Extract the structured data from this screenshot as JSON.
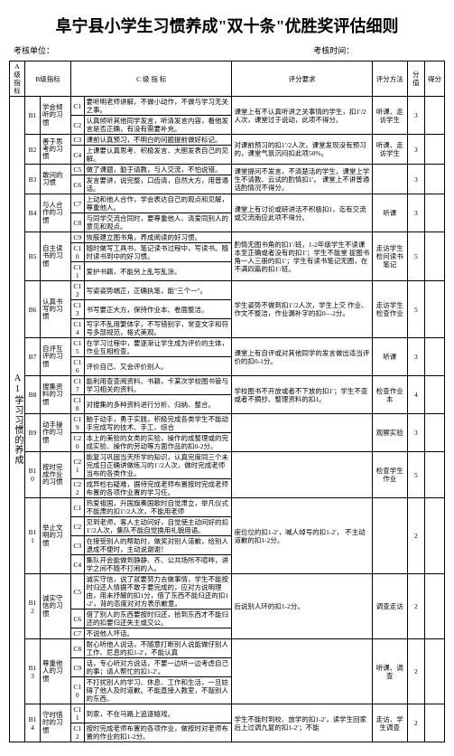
{
  "title": "阜宁县小学生习惯养成\"双十条\"优胜奖评估细则",
  "header": {
    "unit": "考核单位：",
    "time": "考核时间："
  },
  "thead": {
    "a": "A级指标",
    "b": "B级指标",
    "c_header": "C    级    指    标",
    "req": "评分要求",
    "method": "评分方法",
    "score": "分值",
    "got": "得分"
  },
  "a_label": "A1学习习惯的养成",
  "groups": [
    {
      "bn": "B1",
      "bname": "学会倾听的习惯",
      "method": "听课、走访学生",
      "score": "3",
      "rows": [
        {
          "cn": "C1",
          "c": "要听明老师讲解，不做小动作，不做与学习无关之事。",
          "req": "课堂上有不认真听讲之关事情的学生，扣1′/2人次，课堂过于说动，此项不得分。"
        },
        {
          "cn": "C2",
          "c": "认真倾听其他同学发言，听清发言内容，看他发言是否正确，有没有需要补充。",
          "req": ""
        }
      ]
    },
    {
      "bn": "B2",
      "bname": "善于思考的习惯",
      "method": "听课、走访学生",
      "score": "3",
      "rows": [
        {
          "cn": "C3",
          "c": "课前认真预习，不明白的问题提前做好标记。",
          "req": "对课前预习的扣1′/2人次，课堂发现没有预习的，课堂气氛沉闷扣此项50%。"
        },
        {
          "cn": "C4",
          "c": "上课要认真思考、积极发言、大胆发表自己的见解。",
          "req": ""
        }
      ]
    },
    {
      "bn": "B3",
      "bname": "敢问的习惯",
      "method": "",
      "score": "3",
      "rows": [
        {
          "cn": "C5",
          "c": "做了课题，勤于请教，与人交流，不怕说错。",
          "req": "课堂提问不发言，不清楚活的学生，课堂上学生不请教、云试的酌情扣1′。"
        },
        {
          "cn": "C6",
          "c": "发言要讲，说完整，口齿清，自然大方，用普通话。",
          "req": "课堂上不讲普通话酌情况不得分。"
        }
      ]
    },
    {
      "bn": "B4",
      "bname": "与人合作的习惯",
      "method": "听课",
      "score": "3",
      "rows": [
        {
          "cn": "C7",
          "c": "上动和他人合作，学会表达自己的观点和见解，尊重他人。",
          "req": "课堂上有讨论或研讲活不积极扣1，迄有交流或交流南应此项不得分。"
        },
        {
          "cn": "C8",
          "c": "与同学交流合同时，要尊重他人、清爱同别人的意见和观点。",
          "req": ""
        }
      ]
    },
    {
      "bn": "B5",
      "bname": "自主读书的习惯",
      "method": "走访学生检问读书笔记",
      "score": "5",
      "rows": [
        {
          "cn": "C9",
          "c": "恢胺建立图书角，养成阅读的好习惯。",
          "req": "酌情无图书角的扣1′/班，1-2年级学生不读课本至正确或者没有的扣1′；学生不能堂"
        },
        {
          "cn": "C10",
          "c": "随时做写工具书，笔记读书过程中，写读书。随时读书到中的好习惯。",
          "req": "捉图书角一人三册的扣1′；学生有读书笔记无圈，在不满四篇的扣1′/班。"
        },
        {
          "cn": "C11",
          "c": "爱护书籍，不能另上乱写乱涂。",
          "req": ""
        }
      ]
    },
    {
      "bn": "B6",
      "bname": "认真书写的习惯",
      "method": "走访学生检查作业",
      "score": "5",
      "rows": [
        {
          "cn": "C12",
          "c": "写姿姿势端正，正确执笔，能\"三个一\"。",
          "req": "学生姿势不做到扣1′/2人次，学生上交"
        },
        {
          "cn": "C13",
          "c": "书写要正大方，保持作业本、卷面整洁。",
          "req": "作业、作文不整洁，作业漏补字的扣0—2分。"
        },
        {
          "cn": "C14",
          "c": "写字不乱用繁体字，不写错别字，常查文字和符号多部规范，格式美观。",
          "req": ""
        }
      ]
    },
    {
      "bn": "B7",
      "bname": "自评互评的习惯",
      "method": "听课",
      "score": "3",
      "rows": [
        {
          "cn": "C15",
          "c": "在学习过程中，要逐渐让学生成为评价的主体，作业互相检查。",
          "req": "课堂上有自评或对其他同学的发言做出适当评价的扣0-1分。"
        },
        {
          "cn": "C16",
          "c": "评价自己、又会评价别人。",
          "req": ""
        }
      ]
    },
    {
      "bn": "B8",
      "bname": "搜集资料的习惯",
      "method": "检查作业本",
      "score": "4",
      "rows": [
        {
          "cn": "C17",
          "c": "能利用查查阅资料、书籍，卡某次学校图书管与学习相关的资料。",
          "req": "学校图书不开放或者不下放的扣1′；学生不查或者不摘抄、整理资料的扣1。"
        },
        {
          "cn": "C18",
          "c": "对搜集的多种资料进行分析、归纳、整合。",
          "req": ""
        }
      ]
    },
    {
      "bn": "B9",
      "bname": "动手操作的习惯",
      "method": "观察实验",
      "score": "3",
      "rows": [
        {
          "cn": "C19",
          "c": "脑于动手，勇于实践，积极完成各类学生不能动手完成写的技术、手工、综合",
          "req": ""
        },
        {
          "cn": "C20",
          "c": "本上的美验的女类的实验，操作的成整理或的完成实验、操作的劳动等方面作品的扣0-2分。",
          "req": ""
        }
      ]
    },
    {
      "bn": "B10",
      "bname": "按时完成作业的习惯",
      "method": "检查学生作业",
      "score": "5",
      "rows": [
        {
          "cn": "C21",
          "c": "能复习巩固当天所学的知识，认真完度同三个未完成日正确讲做练习的1′/2人次，做时完成老师当布的各类作业。",
          "req": ""
        },
        {
          "cn": "C22",
          "c": "成异检右疑难，据待完成老师布置按时完成老师布置的各项作业置的学习任。",
          "req": ""
        }
      ]
    },
    {
      "bn": "B11",
      "bname": "举止文明的习惯",
      "method": "",
      "score": "2",
      "rows": [
        {
          "cn": "C1",
          "c": "热爱祖国，升国旗奏国歌时自觉肃立，举凡仪式不能肃的扣1′/2人次，不能用老师",
          "req": ""
        },
        {
          "cn": "C2",
          "c": "见到老师，客人主动问好，自觉使主动问好的扣1′/2人次，集队不能自觉换用礼貌用语。",
          "req": "座位位的扣1-2′，喊人绰号的扣1-2′，"
        },
        {
          "cn": "C3",
          "c": "在接受别人的帮助时，做奖对别人道歉，给别人遗成不便时，主动说谢谢！",
          "req": "不主动道歉的扣1-2分。"
        },
        {
          "cn": "C4",
          "c": "集队开会能做到静静、齐、公共场所不喧哗，讲学之间不随不打闹的人。",
          "req": ""
        }
      ]
    },
    {
      "bn": "B12",
      "bname": "诚实守信的习惯",
      "method": "调查走访",
      "score": "2",
      "rows": [
        {
          "cn": "C5",
          "c": "诚实守信，说了就要努力去做事情，学生不能按时归还人情据不敢于要完成的，应对方说明理由，用未抒解的扣1分，借了东西不能归还的扣1-2′，背的态度对对方表示歉意。",
          "req": "后说别人环的扣1-2分。"
        },
        {
          "cn": "C6",
          "c": "借了别人的东西要按时归还，拾到东西才不能归还的扣要归还失主或交公。",
          "req": ""
        },
        {
          "cn": "C7",
          "c": "不说他人坏话。",
          "req": ""
        }
      ]
    },
    {
      "bn": "B13",
      "bname": "尊重他人的习惯",
      "method": "听课、调查",
      "score": "2",
      "rows": [
        {
          "cn": "C8",
          "c": "耐心听他人说话，不随意打断别人说能做仔别人工作、尼息的扣1-2′，不能认真",
          "req": ""
        },
        {
          "cn": "C9",
          "c": "话，专心听对方说话，不要一边听一边考虑自己的事；请人帮忙的扣1-2′。",
          "req": ""
        },
        {
          "cn": "C10",
          "c": "不打扰别人的学习、休息、工作和生活，一旦妨碍了他人及时道歉。不能直接入教室，不敲别人的东西。",
          "req": ""
        }
      ]
    },
    {
      "bn": "B14",
      "bname": "守时惜时的习惯",
      "method": "走访、学生调查",
      "score": "2",
      "rows": [
        {
          "cn": "C11",
          "c": "到家，不在马路上追逐嬉戏。",
          "req": "学生不能时到校、放学的扣1-2′，读学生回家后上过调九复的扣1-2′；不能"
        },
        {
          "cn": "C12",
          "c": "按时完成老师布置的各项作业，做按时对老师布置的作业的扣1-2分。",
          "req": ""
        }
      ]
    }
  ]
}
